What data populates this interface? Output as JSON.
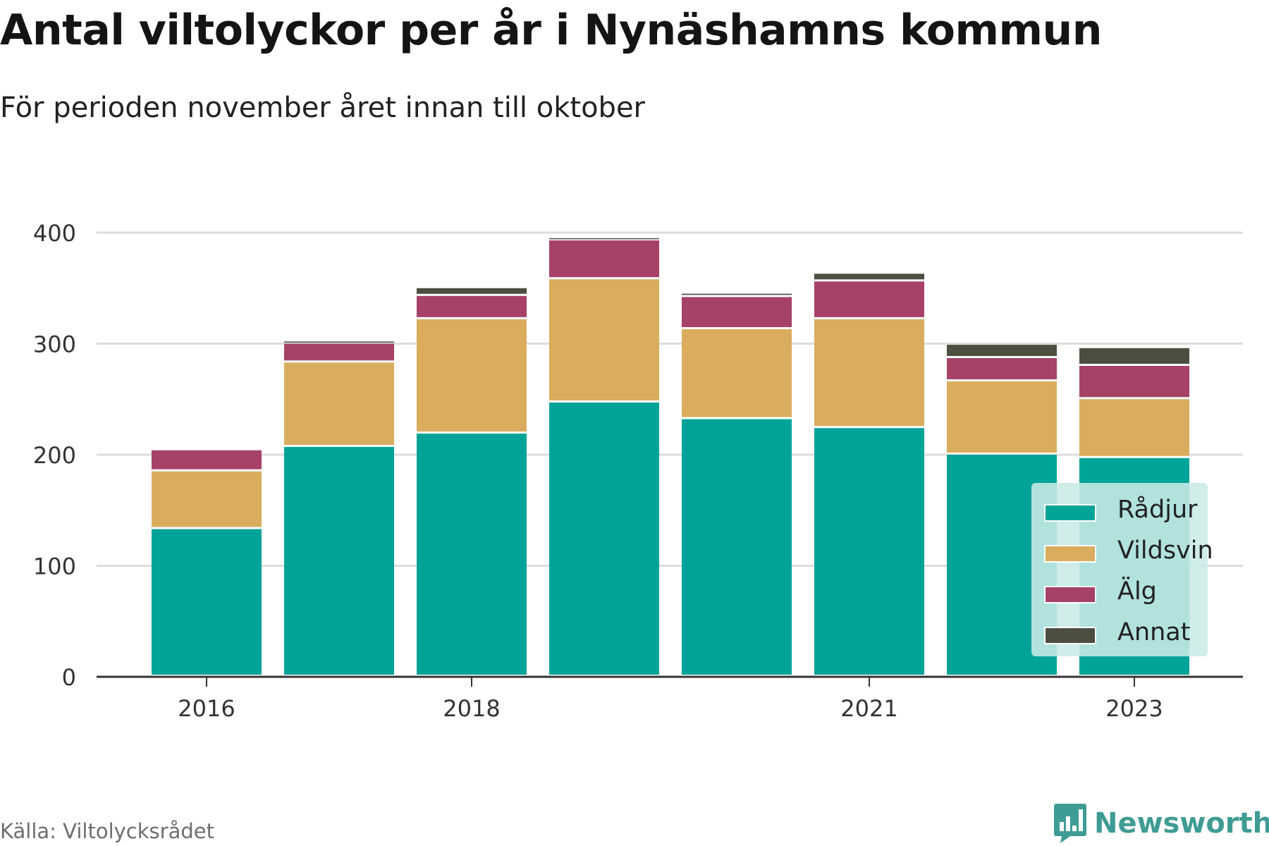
{
  "title": "Antal viltolyckor per år i Nynäshamns kommun",
  "subtitle": "För perioden november året innan till oktober",
  "source": "Källa: Viltolycksrådet",
  "brand": {
    "name": "Newsworthy",
    "icon": "bar-chart-speech-bubble-icon",
    "color": "#3f9c94"
  },
  "legend": {
    "placement": "bottom-right",
    "background": "#c9eae7",
    "items": [
      {
        "label": "Rådjur",
        "color": "#00a398"
      },
      {
        "label": "Vildsvin",
        "color": "#d9ad5d"
      },
      {
        "label": "Älg",
        "color": "#a64267"
      },
      {
        "label": "Annat",
        "color": "#4c4f40"
      }
    ]
  },
  "chart_data": {
    "type": "bar",
    "stacked": true,
    "categories": [
      2016,
      2017,
      2018,
      2019,
      2020,
      2021,
      2022,
      2023
    ],
    "x_tick_labels": [
      "2016",
      "2018",
      "2021",
      "2023"
    ],
    "x_tick_values": [
      2016,
      2018,
      2021,
      2023
    ],
    "y_tick_labels": [
      "0",
      "100",
      "200",
      "300",
      "400"
    ],
    "y_tick_values": [
      0,
      100,
      200,
      300,
      400
    ],
    "ylim": [
      0,
      400
    ],
    "grid": "horizontal",
    "series": [
      {
        "name": "Rådjur",
        "color": "#00a398",
        "values": [
          133,
          207,
          219,
          247,
          232,
          224,
          200,
          197
        ]
      },
      {
        "name": "Vildsvin",
        "color": "#d9ad5d",
        "values": [
          52,
          76,
          103,
          111,
          81,
          98,
          66,
          53
        ]
      },
      {
        "name": "Älg",
        "color": "#a64267",
        "values": [
          19,
          17,
          21,
          35,
          29,
          34,
          21,
          30
        ]
      },
      {
        "name": "Annat",
        "color": "#4c4f40",
        "values": [
          0,
          2,
          7,
          2,
          3,
          7,
          12,
          16
        ]
      }
    ],
    "xlabel": "",
    "ylabel": ""
  }
}
